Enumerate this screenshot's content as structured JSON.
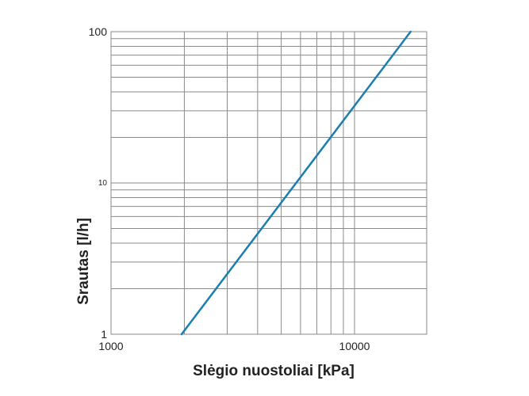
{
  "chart_data": {
    "type": "line",
    "title": "",
    "xlabel": "Slėgio nuostoliai [kPa]",
    "ylabel": "Srautas [l/h]",
    "x_scale": "log",
    "y_scale": "log",
    "xlim": [
      1000,
      20000
    ],
    "ylim": [
      1,
      100
    ],
    "x_tick_labels": [
      {
        "value": 1000,
        "label": "1000"
      },
      {
        "value": 10000,
        "label": "10000"
      }
    ],
    "y_tick_labels": [
      {
        "value": 1,
        "label": "1"
      },
      {
        "value": 10,
        "label": "10"
      },
      {
        "value": 100,
        "label": "100"
      }
    ],
    "x_minor_grid": [
      2000,
      3000,
      4000,
      5000,
      6000,
      7000,
      8000,
      9000,
      20000
    ],
    "y_minor_grid": [
      2,
      3,
      4,
      5,
      6,
      7,
      8,
      9,
      20,
      30,
      40,
      50,
      60,
      70,
      80,
      90
    ],
    "grid": true,
    "series": [
      {
        "color": "#1a7fb0",
        "x": [
          1950,
          17000
        ],
        "y": [
          1,
          100
        ]
      }
    ]
  }
}
